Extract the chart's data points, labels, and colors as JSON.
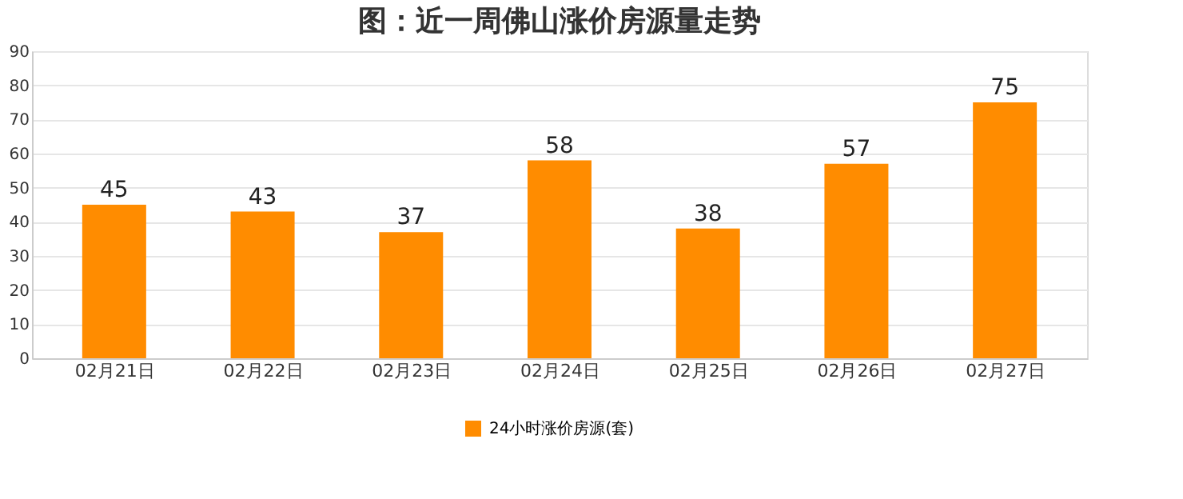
{
  "chart_data": {
    "type": "bar",
    "title": "图：近一周佛山涨价房源量走势",
    "categories": [
      "02月21日",
      "02月22日",
      "02月23日",
      "02月24日",
      "02月25日",
      "02月26日",
      "02月27日"
    ],
    "series": [
      {
        "name": "24小时涨价房源(套)",
        "color": "#ff8c00",
        "values": [
          45,
          43,
          37,
          58,
          38,
          57,
          75
        ]
      }
    ],
    "ylim": [
      0,
      90
    ],
    "yticks": [
      0,
      10,
      20,
      30,
      40,
      50,
      60,
      70,
      80,
      90
    ],
    "grid": "y",
    "legend": "bottom",
    "data_labels": true
  }
}
